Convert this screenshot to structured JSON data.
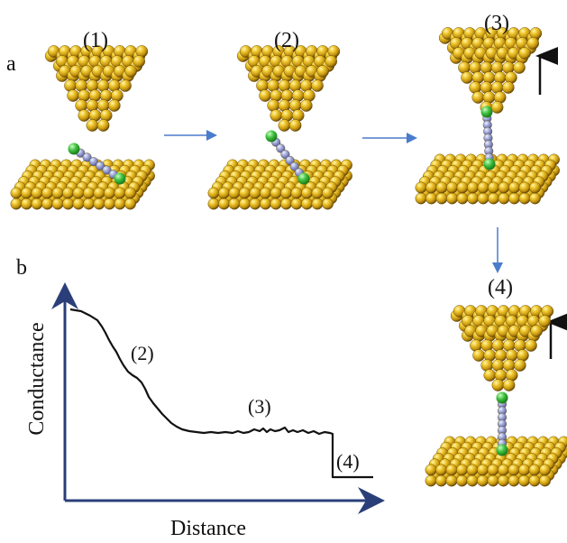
{
  "figure": {
    "panel_a_label": "a",
    "panel_b_label": "b",
    "steps": [
      "(1)",
      "(2)",
      "(3)",
      "(4)"
    ],
    "colors": {
      "gold_light": "#f5d65a",
      "gold_mid": "#d4a81c",
      "gold_dark": "#7a5a06",
      "molecule_bead": "#9aa3d6",
      "anchor_green": "#3fbf3f",
      "arrow_blue": "#4a7ccc",
      "axis_navy": "#2a3f7a"
    }
  },
  "graph": {
    "ylabel": "Conductance",
    "xlabel": "Distance",
    "curve_labels": [
      "(2)",
      "(3)",
      "(4)"
    ]
  }
}
